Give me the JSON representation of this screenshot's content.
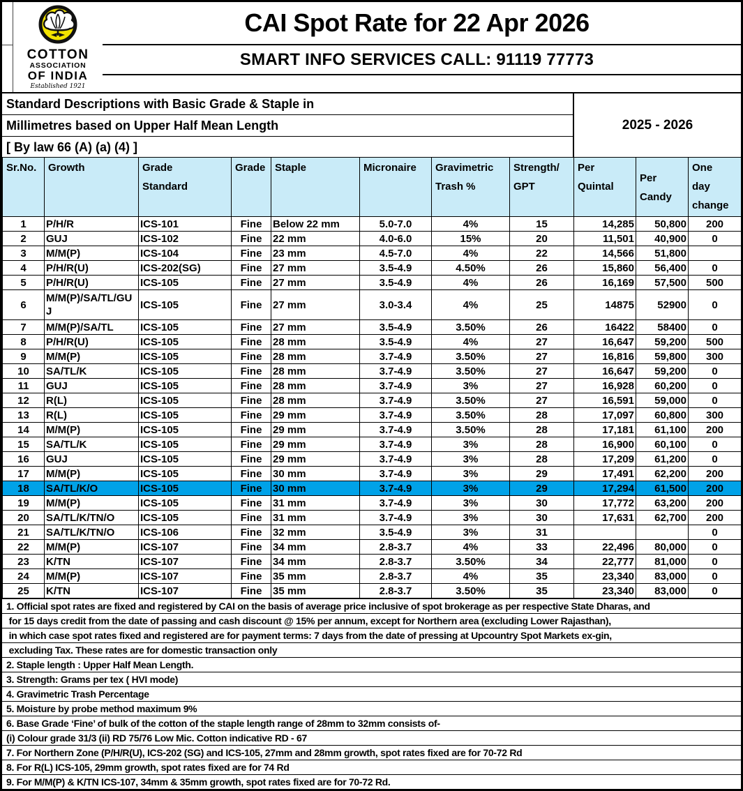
{
  "document": {
    "title": "CAI Spot Rate for 22 Apr 2026",
    "banner": "SMART INFO SERVICES CALL: 91119 77773",
    "logo": {
      "line1": "COTTON",
      "line2": "ASSOCIATION",
      "line3": "OF INDIA",
      "established": "Established 1921"
    },
    "description_lines": [
      "Standard Descriptions with Basic Grade & Staple in",
      "Millimetres based on Upper Half Mean Length",
      "[ By law 66 (A) (a) (4) ]"
    ],
    "season": "2025 - 2026"
  },
  "table": {
    "columns": [
      [
        "Sr.No."
      ],
      [
        "Growth"
      ],
      [
        "Grade",
        "Standard"
      ],
      [
        "Grade"
      ],
      [
        "Staple"
      ],
      [
        "Micronaire"
      ],
      [
        "Gravimetric",
        "Trash %"
      ],
      [
        "Strength/",
        "GPT"
      ],
      [
        "Per",
        "Quintal"
      ],
      [
        "Per",
        "Candy"
      ],
      [
        "One",
        "day",
        "change"
      ]
    ],
    "rows": [
      {
        "sr": "1",
        "growth": "P/H/R",
        "grade_standard": "ICS-101",
        "grade": "Fine",
        "staple": "Below 22 mm",
        "micronaire": "5.0-7.0",
        "trash": "4%",
        "strength": "15",
        "quintal": "14,285",
        "candy": "50,800",
        "change": "200"
      },
      {
        "sr": "2",
        "growth": "GUJ",
        "grade_standard": "ICS-102",
        "grade": "Fine",
        "staple": "22 mm",
        "micronaire": "4.0-6.0",
        "trash": "15%",
        "strength": "20",
        "quintal": "11,501",
        "candy": "40,900",
        "change": "0"
      },
      {
        "sr": "3",
        "growth": "M/M(P)",
        "grade_standard": "ICS-104",
        "grade": "Fine",
        "staple": "23 mm",
        "micronaire": "4.5-7.0",
        "trash": "4%",
        "strength": "22",
        "quintal": "14,566",
        "candy": "51,800",
        "change": ""
      },
      {
        "sr": "4",
        "growth": "P/H/R(U)",
        "grade_standard": "ICS-202(SG)",
        "grade": "Fine",
        "staple": "27 mm",
        "micronaire": "3.5-4.9",
        "trash": "4.50%",
        "strength": "26",
        "quintal": "15,860",
        "candy": "56,400",
        "change": "0"
      },
      {
        "sr": "5",
        "growth": "P/H/R(U)",
        "grade_standard": "ICS-105",
        "grade": "Fine",
        "staple": "27 mm",
        "micronaire": "3.5-4.9",
        "trash": "4%",
        "strength": "26",
        "quintal": "16,169",
        "candy": "57,500",
        "change": "500"
      },
      {
        "sr": "6",
        "growth": "M/M(P)/SA/TL/GUJ",
        "grade_standard": "ICS-105",
        "grade": "Fine",
        "staple": "27 mm",
        "micronaire": "3.0-3.4",
        "trash": "4%",
        "strength": "25",
        "quintal": "14875",
        "candy": "52900",
        "change": "0",
        "tall": true
      },
      {
        "sr": "7",
        "growth": "M/M(P)/SA/TL",
        "grade_standard": "ICS-105",
        "grade": "Fine",
        "staple": "27 mm",
        "micronaire": "3.5-4.9",
        "trash": "3.50%",
        "strength": "26",
        "quintal": "16422",
        "candy": "58400",
        "change": "0"
      },
      {
        "sr": "8",
        "growth": "P/H/R(U)",
        "grade_standard": "ICS-105",
        "grade": "Fine",
        "staple": "28 mm",
        "micronaire": "3.5-4.9",
        "trash": "4%",
        "strength": "27",
        "quintal": "16,647",
        "candy": "59,200",
        "change": "500"
      },
      {
        "sr": "9",
        "growth": "M/M(P)",
        "grade_standard": "ICS-105",
        "grade": "Fine",
        "staple": "28 mm",
        "micronaire": "3.7-4.9",
        "trash": "3.50%",
        "strength": "27",
        "quintal": "16,816",
        "candy": "59,800",
        "change": "300"
      },
      {
        "sr": "10",
        "growth": "SA/TL/K",
        "grade_standard": "ICS-105",
        "grade": "Fine",
        "staple": "28 mm",
        "micronaire": "3.7-4.9",
        "trash": "3.50%",
        "strength": "27",
        "quintal": "16,647",
        "candy": "59,200",
        "change": "0"
      },
      {
        "sr": "11",
        "growth": "GUJ",
        "grade_standard": "ICS-105",
        "grade": "Fine",
        "staple": "28 mm",
        "micronaire": "3.7-4.9",
        "trash": "3%",
        "strength": "27",
        "quintal": "16,928",
        "candy": "60,200",
        "change": "0"
      },
      {
        "sr": "12",
        "growth": "R(L)",
        "grade_standard": "ICS-105",
        "grade": "Fine",
        "staple": "28 mm",
        "micronaire": "3.7-4.9",
        "trash": "3.50%",
        "strength": "27",
        "quintal": "16,591",
        "candy": "59,000",
        "change": "0"
      },
      {
        "sr": "13",
        "growth": "R(L)",
        "grade_standard": "ICS-105",
        "grade": "Fine",
        "staple": "29 mm",
        "micronaire": "3.7-4.9",
        "trash": "3.50%",
        "strength": "28",
        "quintal": "17,097",
        "candy": "60,800",
        "change": "300"
      },
      {
        "sr": "14",
        "growth": "M/M(P)",
        "grade_standard": "ICS-105",
        "grade": "Fine",
        "staple": "29 mm",
        "micronaire": "3.7-4.9",
        "trash": "3.50%",
        "strength": "28",
        "quintal": "17,181",
        "candy": "61,100",
        "change": "200"
      },
      {
        "sr": "15",
        "growth": "SA/TL/K",
        "grade_standard": "ICS-105",
        "grade": "Fine",
        "staple": "29 mm",
        "micronaire": "3.7-4.9",
        "trash": "3%",
        "strength": "28",
        "quintal": "16,900",
        "candy": "60,100",
        "change": "0"
      },
      {
        "sr": "16",
        "growth": "GUJ",
        "grade_standard": "ICS-105",
        "grade": "Fine",
        "staple": "29 mm",
        "micronaire": "3.7-4.9",
        "trash": "3%",
        "strength": "28",
        "quintal": "17,209",
        "candy": "61,200",
        "change": "0"
      },
      {
        "sr": "17",
        "growth": "M/M(P)",
        "grade_standard": "ICS-105",
        "grade": "Fine",
        "staple": "30 mm",
        "micronaire": "3.7-4.9",
        "trash": "3%",
        "strength": "29",
        "quintal": "17,491",
        "candy": "62,200",
        "change": "200"
      },
      {
        "sr": "18",
        "growth": "SA/TL/K/O",
        "grade_standard": "ICS-105",
        "grade": "Fine",
        "staple": "30 mm",
        "micronaire": "3.7-4.9",
        "trash": "3%",
        "strength": "29",
        "quintal": "17,294",
        "candy": "61,500",
        "change": "200",
        "highlighted": true
      },
      {
        "sr": "19",
        "growth": "M/M(P)",
        "grade_standard": "ICS-105",
        "grade": "Fine",
        "staple": "31 mm",
        "micronaire": "3.7-4.9",
        "trash": "3%",
        "strength": "30",
        "quintal": "17,772",
        "candy": "63,200",
        "change": "200"
      },
      {
        "sr": "20",
        "growth": "SA/TL/K/TN/O",
        "grade_standard": "ICS-105",
        "grade": "Fine",
        "staple": "31 mm",
        "micronaire": "3.7-4.9",
        "trash": "3%",
        "strength": "30",
        "quintal": "17,631",
        "candy": "62,700",
        "change": "200"
      },
      {
        "sr": "21",
        "growth": "SA/TL/K/TN/O",
        "grade_standard": "ICS-106",
        "grade": "Fine",
        "staple": "32 mm",
        "micronaire": "3.5-4.9",
        "trash": "3%",
        "strength": "31",
        "quintal": "",
        "candy": "",
        "change": "0"
      },
      {
        "sr": "22",
        "growth": "M/M(P)",
        "grade_standard": "ICS-107",
        "grade": "Fine",
        "staple": "34 mm",
        "micronaire": "2.8-3.7",
        "trash": "4%",
        "strength": "33",
        "quintal": "22,496",
        "candy": "80,000",
        "change": "0"
      },
      {
        "sr": "23",
        "growth": "K/TN",
        "grade_standard": "ICS-107",
        "grade": "Fine",
        "staple": "34 mm",
        "micronaire": "2.8-3.7",
        "trash": "3.50%",
        "strength": "34",
        "quintal": "22,777",
        "candy": "81,000",
        "change": "0"
      },
      {
        "sr": "24",
        "growth": "M/M(P)",
        "grade_standard": "ICS-107",
        "grade": "Fine",
        "staple": "35 mm",
        "micronaire": "2.8-3.7",
        "trash": "4%",
        "strength": "35",
        "quintal": "23,340",
        "candy": "83,000",
        "change": "0"
      },
      {
        "sr": "25",
        "growth": "K/TN",
        "grade_standard": "ICS-107",
        "grade": "Fine",
        "staple": "35 mm",
        "micronaire": "2.8-3.7",
        "trash": "3.50%",
        "strength": "35",
        "quintal": "23,340",
        "candy": "83,000",
        "change": "0"
      }
    ]
  },
  "footnotes": [
    "1. Official spot rates are fixed and registered by CAI on the basis of average price inclusive of spot brokerage as per respective State Dharas, and",
    " for 15 days credit from the date of passing and cash discount @ 15% per annum, except for Northern area (excluding Lower Rajasthan),",
    " in which case spot rates fixed and registered are for payment terms: 7 days from the date of pressing at Upcountry Spot Markets ex-gin,",
    " excluding Tax. These rates are for domestic transaction only",
    "2. Staple length : Upper Half Mean Length.",
    "3. Strength: Grams per tex ( HVI mode)",
    "4. Gravimetric Trash Percentage",
    "5. Moisture by probe method maximum 9%",
    "6. Base Grade ‘Fine’ of bulk of the cotton of the staple length range of 28mm to 32mm consists of-",
    "(i) Colour grade 31/3 (ii) RD 75/76 Low Mic. Cotton indicative RD - 67",
    "7. For Northern Zone (P/H/R(U), ICS-202 (SG) and ICS-105, 27mm and 28mm growth, spot rates fixed are for 70-72 Rd",
    "8. For R(L) ICS-105, 29mm growth, spot rates fixed are for 74 Rd",
    "9. For M/M(P) & K/TN ICS-107, 34mm & 35mm growth, spot rates fixed are for 70-72 Rd."
  ],
  "colors": {
    "header_blue": "#C9EBF8",
    "highlight_blue": "#00A2E8",
    "banner_peach": "#FBE5D6",
    "logo_yellow": "#F3E300"
  }
}
